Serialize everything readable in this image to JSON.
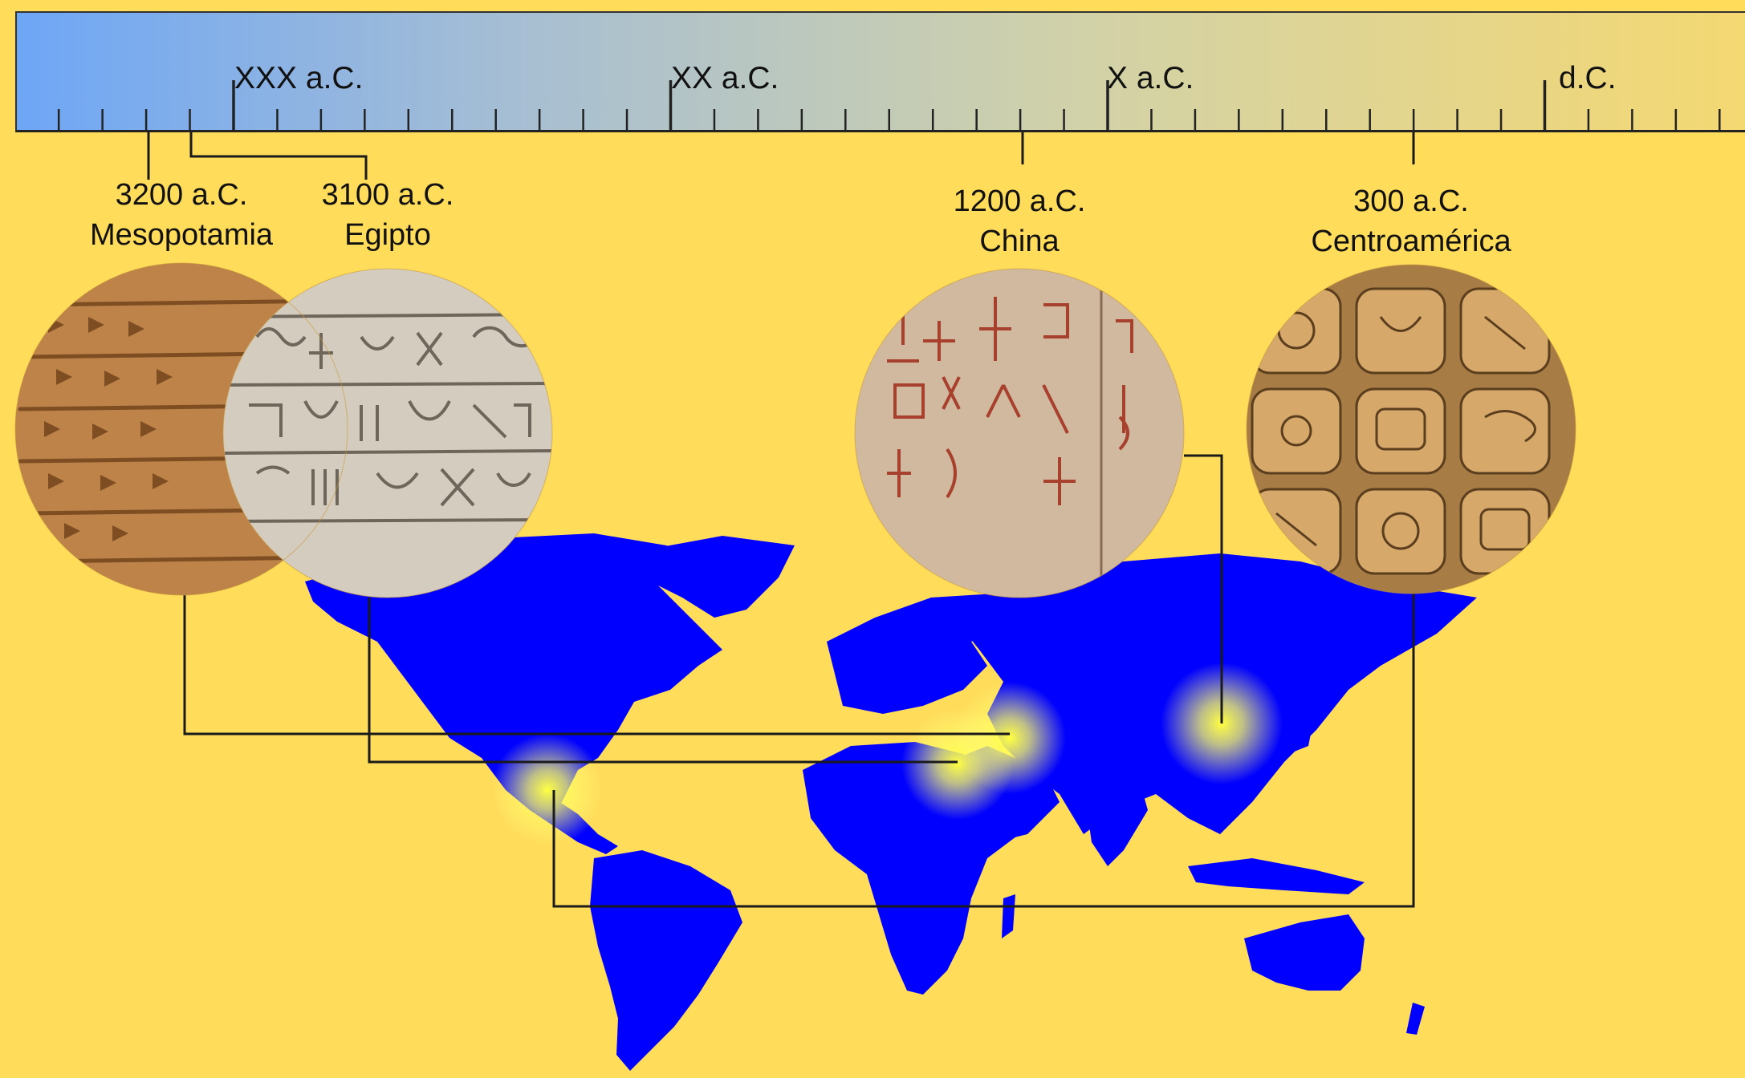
{
  "timeline": {
    "centuries": [
      {
        "label": "XXX a.C.",
        "year": -3000
      },
      {
        "label": "XX a.C.",
        "year": -2000
      },
      {
        "label": "X a.C.",
        "year": -1000
      },
      {
        "label": "d.C.",
        "year": 0
      }
    ],
    "minor_tick_step_years": 100
  },
  "civilizations": [
    {
      "date": "3200 a.C.",
      "region": "Mesopotamia",
      "year": -3200,
      "image": "cuneiform-tablet",
      "image_colors": [
        "#C58A4E",
        "#A96F37",
        "#7E4E22"
      ]
    },
    {
      "date": "3100 a.C.",
      "region": "Egipto",
      "year": -3100,
      "image": "egyptian-hieroglyphs",
      "image_colors": [
        "#D4CCBE",
        "#B8AFA0",
        "#6E665A"
      ]
    },
    {
      "date": "1200 a.C.",
      "region": "China",
      "year": -1200,
      "image": "oracle-bone-script",
      "image_colors": [
        "#D9C3AA",
        "#BFA68C",
        "#A8402E"
      ]
    },
    {
      "date": "300 a.C.",
      "region": "Centroamérica",
      "year": -300,
      "image": "maya-glyphs",
      "image_colors": [
        "#D6A86A",
        "#A77C45",
        "#5B3E1E"
      ]
    }
  ],
  "colors": {
    "background": "#FFDC5A",
    "map_land": "#0000FF",
    "highlight_glow": "#FFFF40",
    "connector_line": "#1A1A1A"
  }
}
